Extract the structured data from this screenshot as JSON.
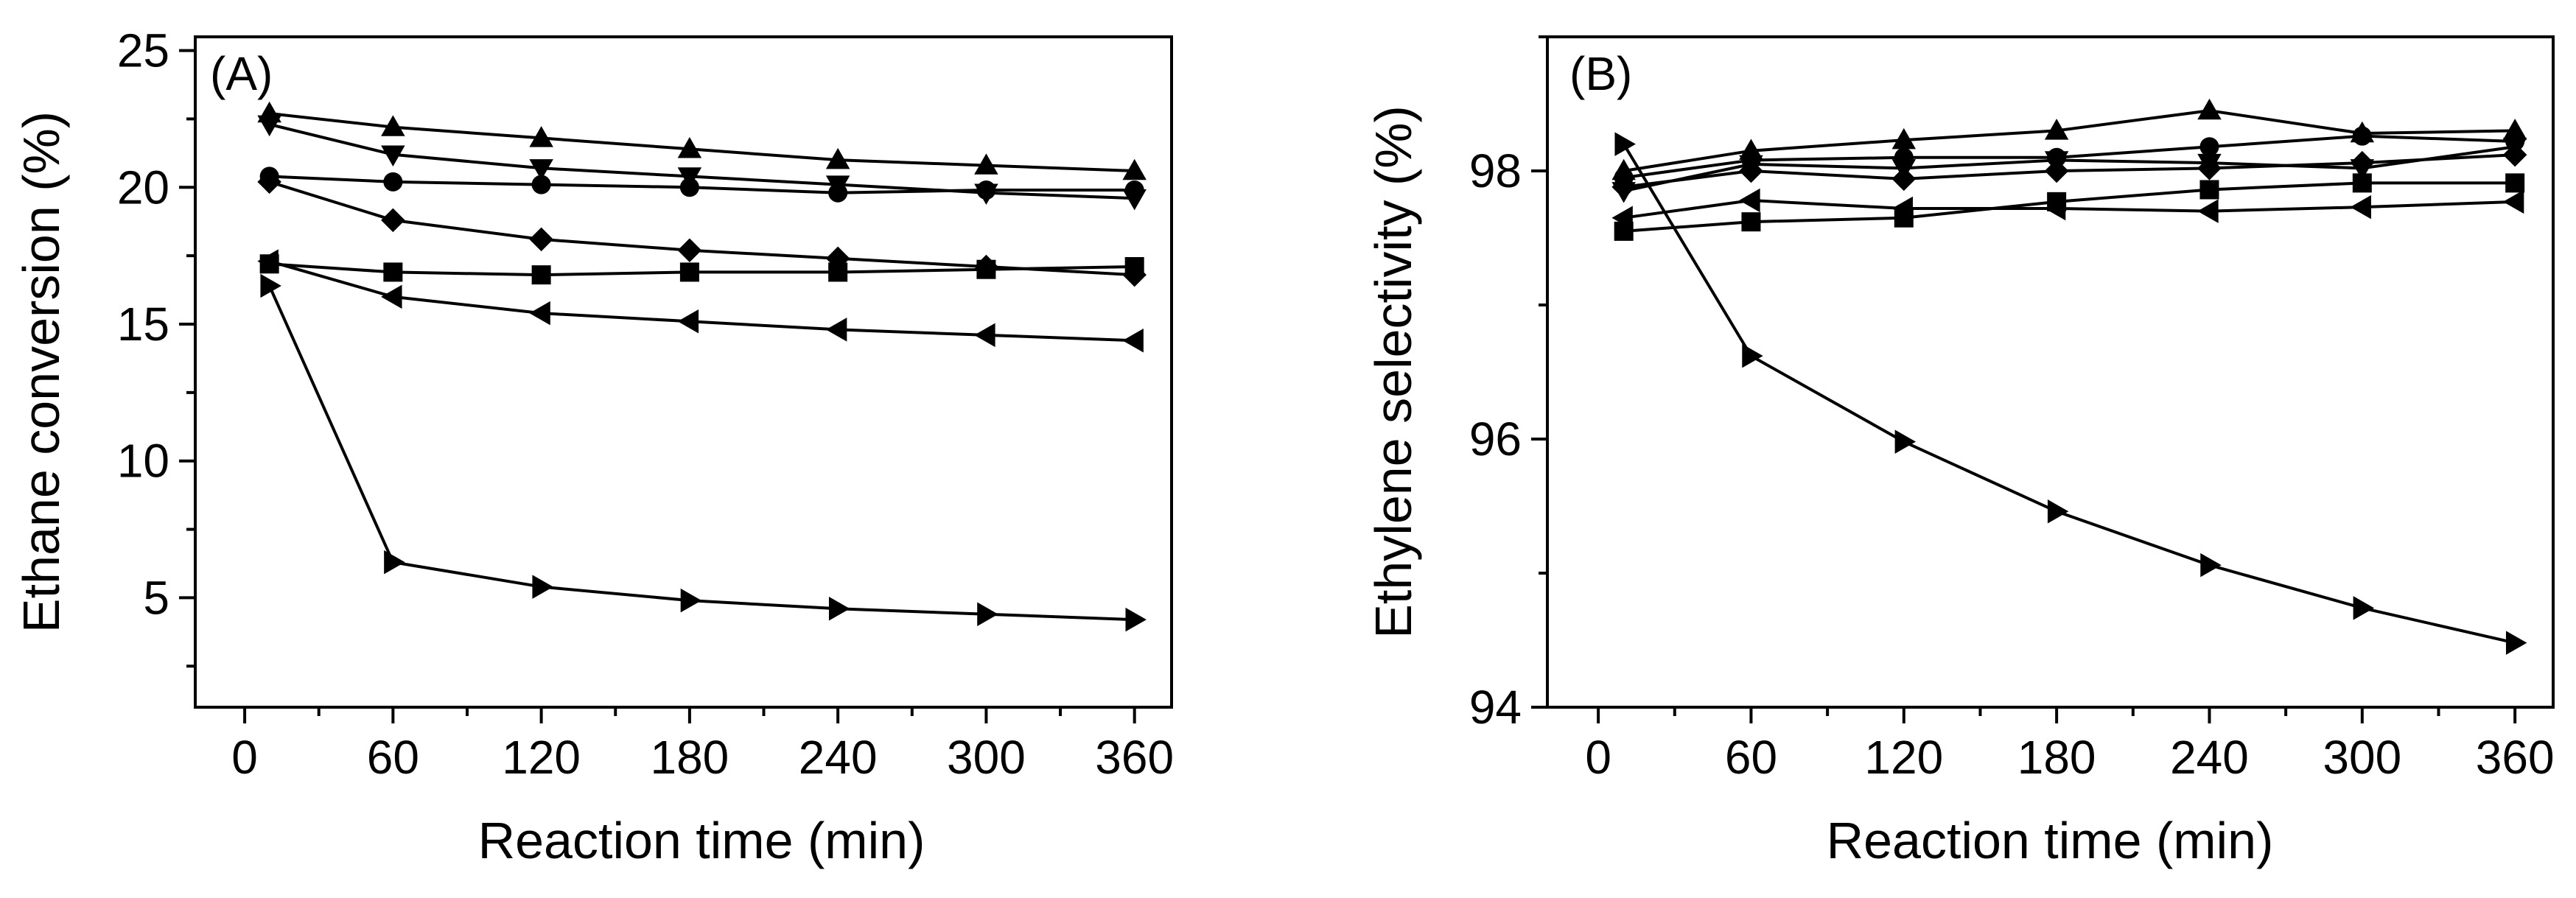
{
  "chart_data": [
    {
      "type": "line",
      "panel_label": "(A)",
      "xlabel": "Reaction time (min)",
      "ylabel": "Ethane conversion (%)",
      "xlim": [
        -20,
        375
      ],
      "ylim": [
        1,
        25.5
      ],
      "xticks": [
        0,
        60,
        120,
        180,
        240,
        300,
        360
      ],
      "yticks": [
        5,
        10,
        15,
        20,
        25
      ],
      "x": [
        10,
        60,
        120,
        180,
        240,
        300,
        360
      ],
      "series": [
        {
          "name": "square",
          "marker": "square",
          "values": [
            17.2,
            16.9,
            16.8,
            16.9,
            16.9,
            17.0,
            17.1
          ]
        },
        {
          "name": "circle",
          "marker": "circle",
          "values": [
            20.4,
            20.2,
            20.1,
            20.0,
            19.8,
            19.9,
            19.9
          ]
        },
        {
          "name": "triangle-up",
          "marker": "triangle-up",
          "values": [
            22.7,
            22.2,
            21.8,
            21.4,
            21.0,
            20.8,
            20.6
          ]
        },
        {
          "name": "triangle-down",
          "marker": "triangle-down",
          "values": [
            22.3,
            21.2,
            20.7,
            20.4,
            20.1,
            19.8,
            19.6
          ]
        },
        {
          "name": "diamond",
          "marker": "diamond",
          "values": [
            20.2,
            18.8,
            18.1,
            17.7,
            17.4,
            17.1,
            16.8
          ]
        },
        {
          "name": "triangle-left",
          "marker": "triangle-left",
          "values": [
            17.3,
            16.0,
            15.4,
            15.1,
            14.8,
            14.6,
            14.4
          ]
        },
        {
          "name": "triangle-right",
          "marker": "triangle-right",
          "values": [
            16.4,
            6.3,
            5.4,
            4.9,
            4.6,
            4.4,
            4.2
          ]
        }
      ]
    },
    {
      "type": "line",
      "panel_label": "(B)",
      "xlabel": "Reaction time (min)",
      "ylabel": "Ethylene selectivity (%)",
      "xlim": [
        -20,
        375
      ],
      "ylim": [
        94,
        99.0
      ],
      "xticks": [
        0,
        60,
        120,
        180,
        240,
        300,
        360
      ],
      "yticks": [
        94,
        96,
        98
      ],
      "x": [
        10,
        60,
        120,
        180,
        240,
        300,
        360
      ],
      "series": [
        {
          "name": "square",
          "marker": "square",
          "values": [
            97.55,
            97.62,
            97.65,
            97.77,
            97.86,
            97.91,
            97.91
          ]
        },
        {
          "name": "circle",
          "marker": "circle",
          "values": [
            97.95,
            98.08,
            98.1,
            98.1,
            98.18,
            98.26,
            98.22
          ]
        },
        {
          "name": "triangle-up",
          "marker": "triangle-up",
          "values": [
            98.0,
            98.15,
            98.23,
            98.3,
            98.45,
            98.28,
            98.3
          ]
        },
        {
          "name": "triangle-down",
          "marker": "triangle-down",
          "values": [
            97.85,
            98.05,
            98.02,
            98.08,
            98.06,
            98.02,
            98.18
          ]
        },
        {
          "name": "diamond",
          "marker": "diamond",
          "values": [
            97.88,
            98.0,
            97.94,
            98.0,
            98.02,
            98.06,
            98.12
          ]
        },
        {
          "name": "triangle-left",
          "marker": "triangle-left",
          "values": [
            97.65,
            97.78,
            97.72,
            97.72,
            97.7,
            97.73,
            97.77
          ]
        },
        {
          "name": "triangle-right",
          "marker": "triangle-right",
          "values": [
            98.2,
            96.62,
            95.98,
            95.46,
            95.06,
            94.74,
            94.48
          ]
        }
      ]
    }
  ]
}
